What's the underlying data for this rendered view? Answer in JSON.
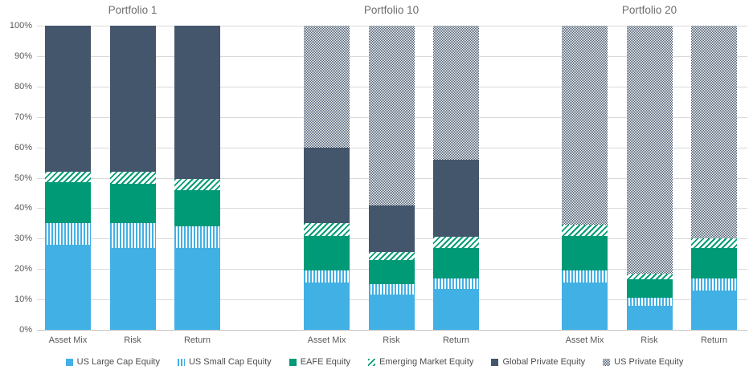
{
  "chart_data": {
    "type": "bar",
    "stacked": true,
    "value_unit": "%",
    "ylim": [
      0,
      100
    ],
    "ytick_step": 10,
    "ytick_labels": [
      "0%",
      "10%",
      "20%",
      "30%",
      "40%",
      "50%",
      "60%",
      "70%",
      "80%",
      "90%",
      "100%"
    ],
    "grid": true,
    "legend_position": "bottom",
    "series": [
      {
        "name": "US Large Cap Equity",
        "color": "#41B0E4",
        "pattern": "solid"
      },
      {
        "name": "US Small Cap Equity",
        "color": "#41B0E4",
        "pattern": "vertical-stripes"
      },
      {
        "name": "EAFE Equity",
        "color": "#009A76",
        "pattern": "solid"
      },
      {
        "name": "Emerging Market Equity",
        "color": "#009A76",
        "pattern": "diagonal-stripes"
      },
      {
        "name": "Global Private Equity",
        "color": "#44566B",
        "pattern": "solid"
      },
      {
        "name": "US Private Equity",
        "color": "#44566B",
        "pattern": "checker"
      }
    ],
    "groups": [
      {
        "title": "Portfolio 1",
        "bars": [
          {
            "label": "Asset Mix",
            "values": [
              28,
              7,
              13.5,
              3.5,
              48,
              0
            ]
          },
          {
            "label": "Risk",
            "values": [
              27,
              8,
              13,
              4,
              48,
              0
            ]
          },
          {
            "label": "Return",
            "values": [
              27,
              7,
              12,
              3.5,
              50.5,
              0
            ]
          }
        ]
      },
      {
        "title": "Portfolio 10",
        "bars": [
          {
            "label": "Asset Mix",
            "values": [
              15.5,
              4,
              11.5,
              4,
              25,
              40
            ]
          },
          {
            "label": "Risk",
            "values": [
              11.5,
              3.5,
              8,
              2.5,
              15.5,
              59
            ]
          },
          {
            "label": "Return",
            "values": [
              13.5,
              3.5,
              10,
              3.5,
              25.5,
              44
            ]
          }
        ]
      },
      {
        "title": "Portfolio 20",
        "bars": [
          {
            "label": "Asset Mix",
            "values": [
              15.5,
              4,
              11.5,
              3.5,
              0,
              65.5
            ]
          },
          {
            "label": "Risk",
            "values": [
              8,
              2.5,
              6,
              2,
              0,
              81.5
            ]
          },
          {
            "label": "Return",
            "values": [
              13,
              4,
              10,
              3,
              0,
              70
            ]
          }
        ]
      }
    ],
    "colors": {
      "grid": "#D9D9D9",
      "axis": "#C6C6C6",
      "tick_text": "#595959",
      "title_text": "#6E6E6E",
      "legend_text": "#4D4D4D",
      "background": "#FFFFFF"
    }
  }
}
